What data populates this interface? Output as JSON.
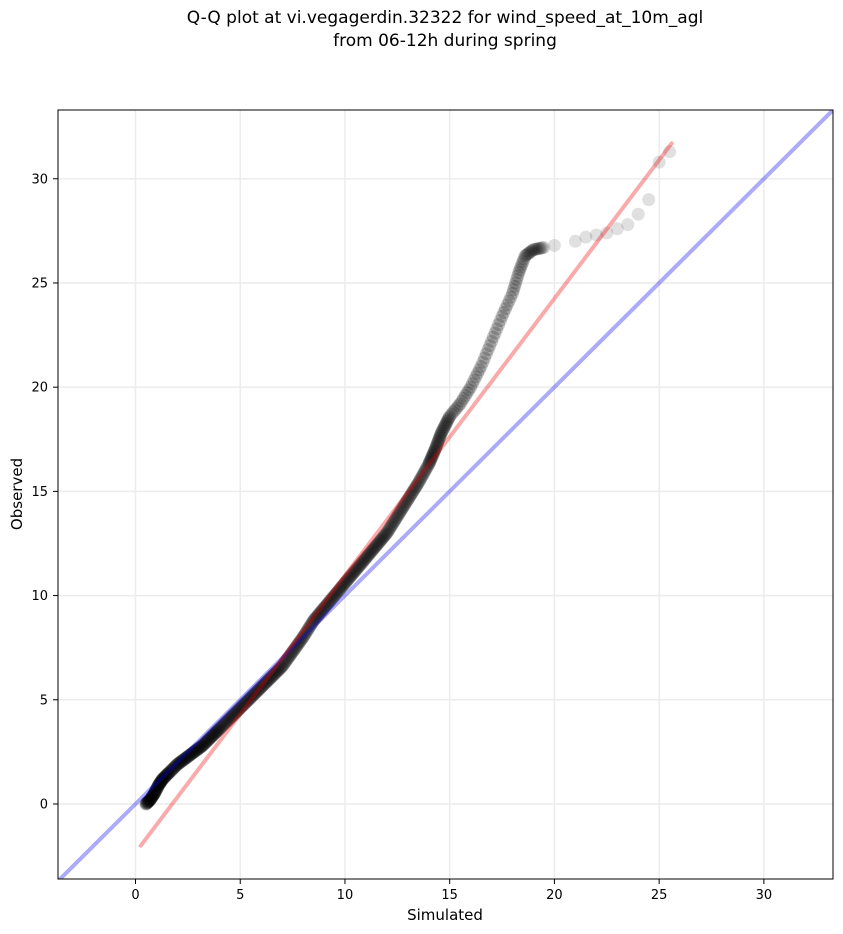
{
  "chart_data": {
    "type": "scatter",
    "title": "Q-Q plot at vi.vegagerdin.32322 for wind_speed_at_10m_agl",
    "subtitle": "from 06-12h during spring",
    "xlabel": "Simulated",
    "ylabel": "Observed",
    "xlim": [
      -3.7,
      33.3
    ],
    "ylim": [
      -3.6,
      33.3
    ],
    "xticks": [
      0,
      5,
      10,
      15,
      20,
      25,
      30
    ],
    "yticks": [
      0,
      5,
      10,
      15,
      20,
      25,
      30
    ],
    "grid": true,
    "legend": "none",
    "colors": {
      "points": "#000000",
      "identity_line": "#aaaaf0",
      "fit_line": "#f5a6a6",
      "grid": "#ececec"
    },
    "series": [
      {
        "kind": "quantile_points",
        "x": [
          0.5,
          0.7,
          0.9,
          1.1,
          1.3,
          1.6,
          2.0,
          2.4,
          2.8,
          3.2,
          3.6,
          4.0,
          4.5,
          5.0,
          5.5,
          6.0,
          6.5,
          7.0,
          7.5,
          8.0,
          8.5,
          9.0,
          9.5,
          10.0,
          10.5,
          11.0,
          11.5,
          12.0,
          12.5,
          13.0,
          13.5,
          14.0,
          14.3,
          14.6,
          15.0,
          15.5,
          16.0,
          16.5,
          17.0,
          17.5,
          18.0,
          18.3,
          18.6,
          19.0,
          19.5,
          20.0,
          21.0,
          21.5,
          22.0,
          22.5,
          23.0,
          23.5,
          24.0,
          24.5,
          25.0,
          25.5
        ],
        "y": [
          0.0,
          0.2,
          0.5,
          0.9,
          1.2,
          1.5,
          1.9,
          2.2,
          2.5,
          2.8,
          3.2,
          3.6,
          4.1,
          4.6,
          5.1,
          5.6,
          6.1,
          6.6,
          7.3,
          8.0,
          8.8,
          9.4,
          10.0,
          10.6,
          11.2,
          11.8,
          12.4,
          13.0,
          13.8,
          14.6,
          15.4,
          16.3,
          17.0,
          17.8,
          18.6,
          19.2,
          20.0,
          21.0,
          22.2,
          23.4,
          24.5,
          25.5,
          26.3,
          26.6,
          26.7,
          26.8,
          27.0,
          27.2,
          27.3,
          27.4,
          27.6,
          27.8,
          28.3,
          29.0,
          30.8,
          31.3
        ]
      },
      {
        "kind": "identity_line",
        "x": [
          -3.7,
          33.3
        ],
        "y": [
          -3.7,
          33.3
        ]
      },
      {
        "kind": "fit_line",
        "x": [
          0.25,
          25.6
        ],
        "y": [
          -2.0,
          31.7
        ]
      }
    ]
  }
}
